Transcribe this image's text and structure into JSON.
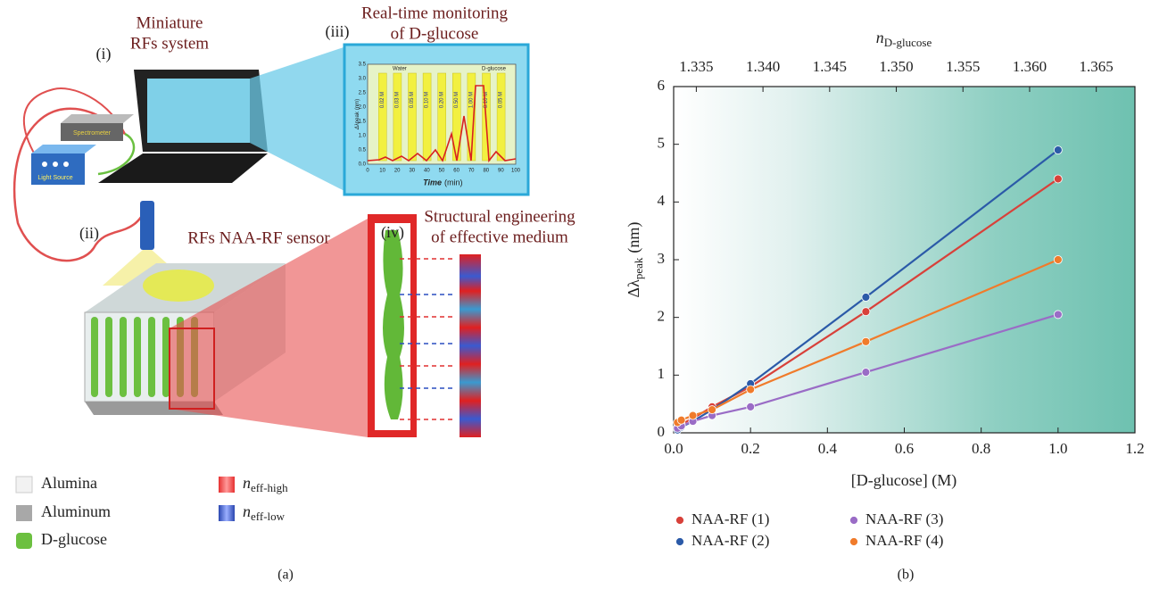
{
  "panel_a": {
    "caption": "(a)",
    "system_tag": "(i)",
    "system_title": [
      "Miniature",
      "RFs system"
    ],
    "spectrometer": "Spectrometer",
    "light_source": "Light Source",
    "monitor_tag": "(iii)",
    "monitor_title": [
      "Real-time monitoring",
      "of D-glucose"
    ],
    "inset": {
      "legend": [
        "Water",
        "D-glucose"
      ],
      "ylabel": {
        "symbol": "Δλ",
        "subscript": "peak",
        "unit": "(nm)"
      },
      "yticks": [
        "0.0",
        "0.5",
        "1.0",
        "1.5",
        "2.0",
        "2.5",
        "3.0",
        "3.5"
      ],
      "xlabel": "Time",
      "xunit": "(min)",
      "xticks": [
        0,
        10,
        20,
        30,
        40,
        50,
        60,
        70,
        80,
        90,
        100
      ],
      "bar_labels": [
        "0.02 M",
        "0.03 M",
        "0.05 M",
        "0.10 M",
        "0.20 M",
        "0.50 M",
        "1.00 M",
        "0.10 M",
        "0.05 M"
      ]
    },
    "probe_tag": "(ii)",
    "sensor_title": "RFs NAA-RF sensor",
    "pore_tag": "(iv)",
    "medium_title": [
      "Structural engineering",
      "of effective medium"
    ],
    "legend": {
      "alumina": "Alumina",
      "aluminum": "Aluminum",
      "glucose": "D-glucose",
      "n_high": {
        "symbol": "n",
        "subscript": "eff-high"
      },
      "n_low": {
        "symbol": "n",
        "subscript": "eff-low"
      }
    }
  },
  "chart_data": {
    "type": "scatter",
    "caption": "(b)",
    "xlabel": "[D-glucose] (M)",
    "ylabel": {
      "symbol": "Δλ",
      "subscript": "peak",
      "unit": "(nm)"
    },
    "x2label": {
      "symbol": "n",
      "subscript": "D-glucose"
    },
    "x": [
      0.01,
      0.02,
      0.05,
      0.1,
      0.2,
      0.5,
      1.0
    ],
    "xlim": [
      0,
      1.2
    ],
    "xticks": [
      {
        "value": 0,
        "label": "0.0"
      },
      0.2,
      0.4,
      0.6,
      0.8,
      {
        "value": 1,
        "label": "1.0"
      },
      1.2
    ],
    "x2lim": [
      1.3333,
      1.3679
    ],
    "x2ticks": [
      1.335,
      {
        "value": 1.34,
        "label": "1.340"
      },
      1.345,
      {
        "value": 1.35,
        "label": "1.350"
      },
      1.355,
      {
        "value": 1.36,
        "label": "1.360"
      },
      1.365
    ],
    "ylim": [
      0,
      6
    ],
    "yticks": [
      0,
      1,
      2,
      3,
      4,
      5,
      6
    ],
    "legend": "bottom",
    "series": [
      {
        "name": "NAA-RF (1)",
        "color": "#d8413a",
        "values": [
          0.1,
          0.15,
          0.25,
          0.45,
          0.8,
          2.1,
          4.4
        ]
      },
      {
        "name": "NAA-RF (2)",
        "color": "#2b5aa8",
        "values": [
          0.05,
          0.1,
          0.2,
          0.4,
          0.85,
          2.35,
          4.9
        ]
      },
      {
        "name": "NAA-RF (3)",
        "color": "#9a6cc6",
        "values": [
          0.08,
          0.12,
          0.2,
          0.3,
          0.45,
          1.05,
          2.05
        ]
      },
      {
        "name": "NAA-RF (4)",
        "color": "#f07b2b",
        "values": [
          0.18,
          0.22,
          0.3,
          0.4,
          0.75,
          1.58,
          3.0
        ]
      }
    ]
  }
}
